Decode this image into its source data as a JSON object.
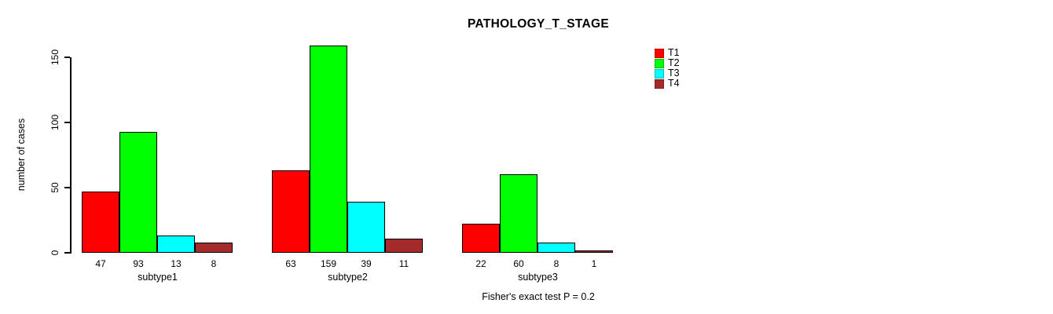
{
  "chart_data": {
    "type": "bar",
    "title": "PATHOLOGY_T_STAGE",
    "ylabel": "number of cases",
    "xlabel": "",
    "categories": [
      "subtype1",
      "subtype2",
      "subtype3"
    ],
    "series": [
      {
        "name": "T1",
        "color": "#ff0000",
        "values": [
          47,
          63,
          22
        ]
      },
      {
        "name": "T2",
        "color": "#00ff00",
        "values": [
          93,
          159,
          60
        ]
      },
      {
        "name": "T3",
        "color": "#00ffff",
        "values": [
          13,
          39,
          8
        ]
      },
      {
        "name": "T4",
        "color": "#a52a2a",
        "values": [
          8,
          11,
          1
        ]
      }
    ],
    "yticks": [
      0,
      50,
      100,
      150
    ],
    "ylim": [
      0,
      150
    ],
    "grid": false,
    "bar_value_labels": true,
    "legend_position": "top-right",
    "annotation": "Fisher's exact test P = 0.2"
  }
}
